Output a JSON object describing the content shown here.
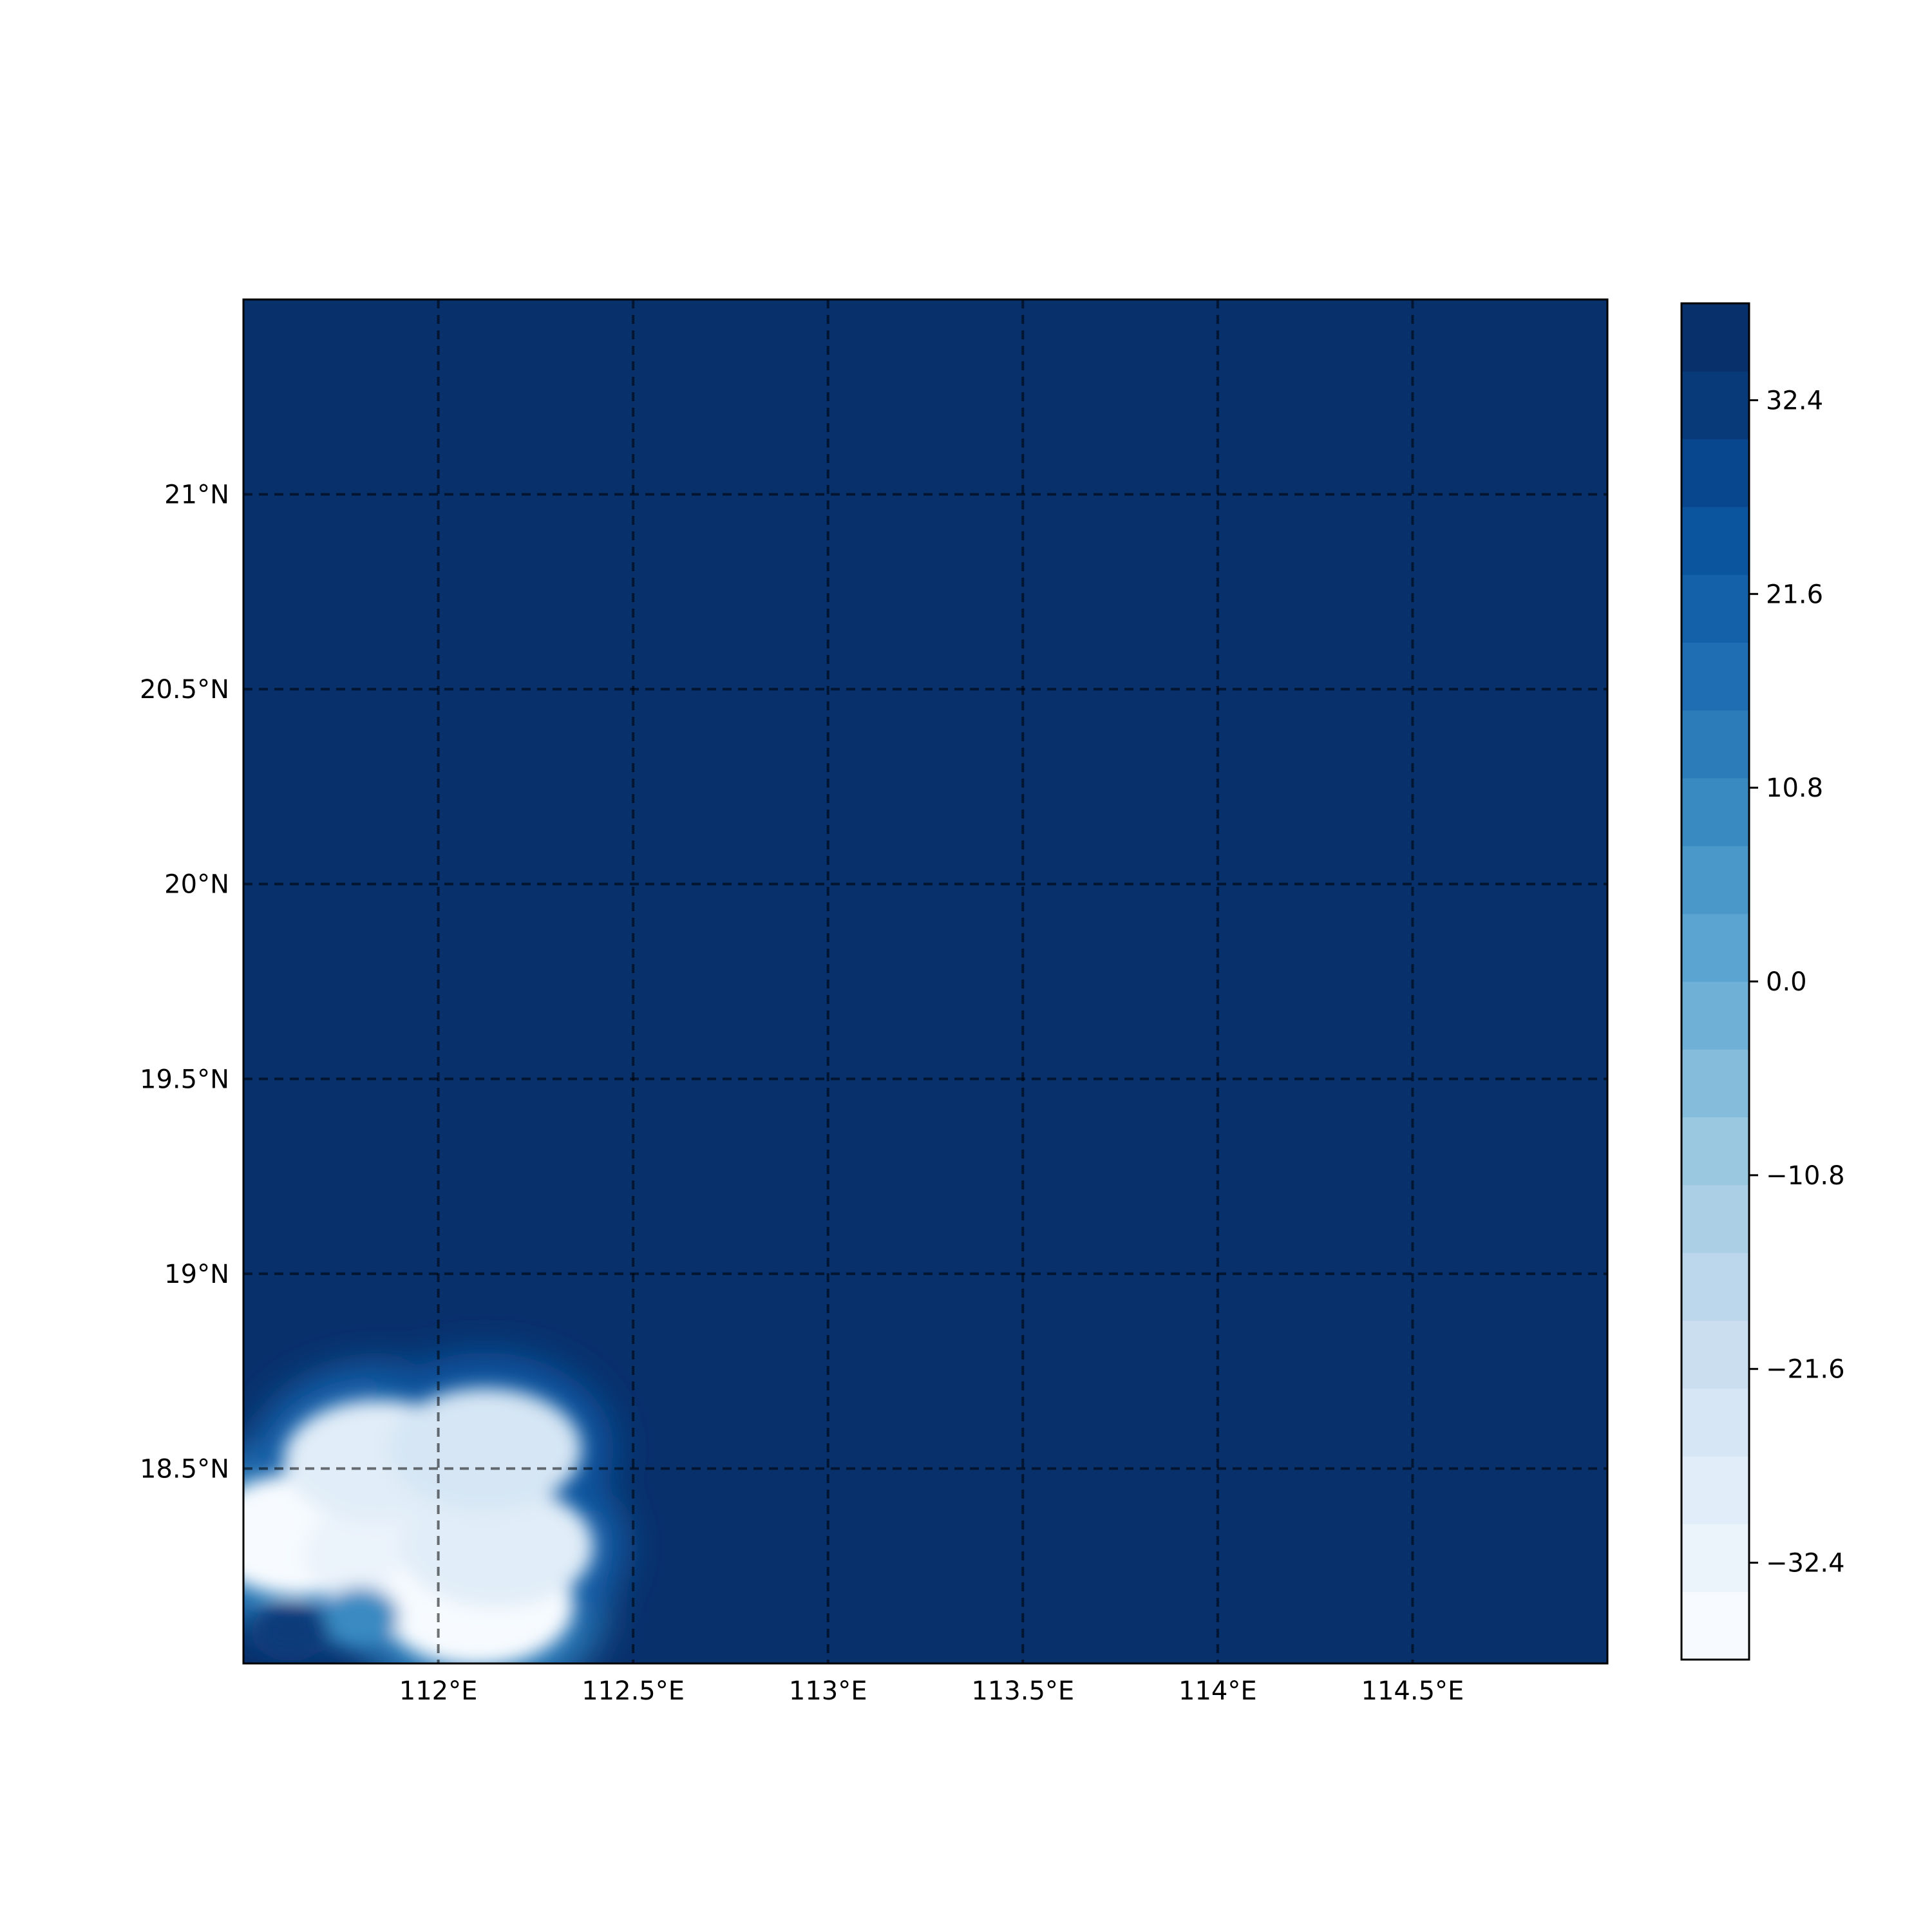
{
  "chart_data": {
    "type": "heatmap",
    "title": "",
    "xlabel": "",
    "ylabel": "",
    "xlim": [
      111.5,
      115.0
    ],
    "ylim": [
      18.0,
      21.5
    ],
    "grid": true,
    "grid_style": "dashed",
    "x_gridlines": [
      112.0,
      112.5,
      113.0,
      113.5,
      114.0,
      114.5
    ],
    "y_gridlines": [
      18.5,
      19.0,
      19.5,
      20.0,
      20.5,
      21.0
    ],
    "x_tick_labels": [
      "112°E",
      "112.5°E",
      "113°E",
      "113.5°E",
      "114°E",
      "114.5°E"
    ],
    "y_tick_labels": [
      "18.5°N",
      "19°N",
      "19.5°N",
      "20°N",
      "20.5°N",
      "21°N"
    ],
    "background_value": 36,
    "colormap": "Blues",
    "colorbar": {
      "min": -37.8,
      "max": 37.8,
      "levels": 20,
      "ticks": [
        -32.4,
        -21.6,
        -10.8,
        0.0,
        10.8,
        21.6,
        32.4
      ],
      "tick_labels": [
        "−32.4",
        "−21.6",
        "−10.8",
        "0.0",
        "10.8",
        "21.6",
        "32.4"
      ],
      "colors": [
        "#f7fbff",
        "#ebf3fb",
        "#e1edf8",
        "#d6e6f4",
        "#cadef0",
        "#bcd7eb",
        "#abd0e6",
        "#9ac8e0",
        "#85bcdc",
        "#6fb0d7",
        "#5ba3d0",
        "#4a98c9",
        "#3a8ac2",
        "#2c7cba",
        "#1f6eb3",
        "#1561a9",
        "#0b559f",
        "#08478d",
        "#083a7a",
        "#08306b"
      ]
    },
    "anomaly_region": {
      "description_values": "low values in south-west corner",
      "blobs": [
        {
          "lon": 111.65,
          "lat": 18.33,
          "value": -36
        },
        {
          "lon": 111.9,
          "lat": 18.28,
          "value": -33
        },
        {
          "lon": 112.1,
          "lat": 18.15,
          "value": -37
        },
        {
          "lon": 112.15,
          "lat": 18.3,
          "value": -30
        },
        {
          "lon": 111.85,
          "lat": 18.52,
          "value": -28
        },
        {
          "lon": 112.12,
          "lat": 18.55,
          "value": -26
        },
        {
          "lon": 111.8,
          "lat": 18.12,
          "value": 10
        },
        {
          "lon": 111.62,
          "lat": 18.08,
          "value": 34
        }
      ]
    }
  }
}
